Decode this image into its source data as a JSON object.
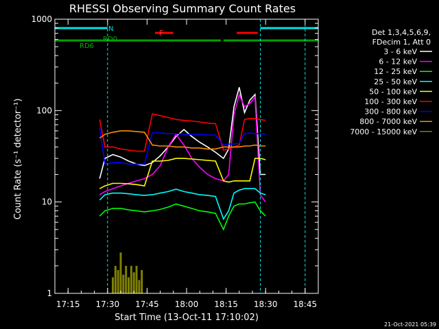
{
  "chart_data": {
    "type": "line",
    "title": "RHESSI Observing Summary Count Rates",
    "xlabel": "Start Time (13-Oct-11 17:10:02)",
    "ylabel": "Count Rate (s⁻¹ detector⁻¹)",
    "y_scale": "log",
    "ylim": [
      1,
      1000
    ],
    "xlim": [
      "17:10",
      "18:50"
    ],
    "x_ticks": [
      "17:15",
      "17:30",
      "17:45",
      "18:00",
      "18:15",
      "18:30",
      "18:45"
    ],
    "y_ticks": [
      "1",
      "10",
      "100",
      "1000"
    ],
    "legend_header": [
      "Det 1,3,4,5,6,9,",
      "FDecim 1, Att 0"
    ],
    "legend_placement": "right",
    "timestamp": "21-Oct-2021 05:39",
    "flag_labels": {
      "night": "N",
      "flare": "F",
      "rd0": "RD0",
      "rd6": "RD6"
    },
    "flags": {
      "night": {
        "color": "#00e5e5",
        "intervals": [
          [
            "17:10",
            "17:30"
          ],
          [
            "18:28",
            "18:50"
          ]
        ]
      },
      "flare": {
        "color": "#ff0000",
        "intervals": [
          [
            "17:48",
            "17:55"
          ],
          [
            "18:19",
            "18:27"
          ]
        ]
      },
      "rd0": {
        "color": "#00a000",
        "intervals": [
          [
            "17:10",
            "17:28"
          ],
          [
            "17:28",
            "17:47"
          ],
          [
            "17:47",
            "18:13"
          ],
          [
            "18:14",
            "18:24"
          ],
          [
            "18:24",
            "18:50"
          ]
        ]
      }
    },
    "vlines": {
      "color": "#00e5e5",
      "times": [
        "17:10",
        "17:30",
        "18:28",
        "18:45"
      ]
    },
    "series": [
      {
        "name": "3 - 6 keV",
        "color": "#ffffff",
        "x": [
          "17:27",
          "17:29",
          "17:32",
          "17:35",
          "17:38",
          "17:41",
          "17:44",
          "17:47",
          "17:50",
          "17:53",
          "17:56",
          "17:59",
          "18:02",
          "18:05",
          "18:08",
          "18:11",
          "18:14",
          "18:16",
          "18:18",
          "18:20",
          "18:22",
          "18:24",
          "18:26",
          "18:28",
          "18:30"
        ],
        "y": [
          18,
          30,
          33,
          31,
          28,
          26,
          25,
          27,
          32,
          40,
          52,
          62,
          52,
          45,
          40,
          35,
          30,
          38,
          110,
          180,
          95,
          130,
          150,
          20,
          20
        ]
      },
      {
        "name": "6 - 12 keV",
        "color": "#ff00ff",
        "x": [
          "17:27",
          "17:29",
          "17:32",
          "17:35",
          "17:38",
          "17:41",
          "17:44",
          "17:47",
          "17:50",
          "17:53",
          "17:56",
          "17:59",
          "18:02",
          "18:05",
          "18:08",
          "18:11",
          "18:14",
          "18:16",
          "18:18",
          "18:20",
          "18:22",
          "18:24",
          "18:26",
          "18:28",
          "18:30"
        ],
        "y": [
          12,
          13,
          14,
          15,
          16,
          17,
          18,
          20,
          25,
          40,
          55,
          42,
          30,
          24,
          20,
          18,
          17,
          20,
          90,
          150,
          110,
          120,
          140,
          12,
          10
        ]
      },
      {
        "name": "12 - 25 keV",
        "color": "#00ff00",
        "x": [
          "17:27",
          "17:29",
          "17:32",
          "17:35",
          "17:38",
          "17:41",
          "17:44",
          "17:47",
          "17:50",
          "17:53",
          "17:56",
          "17:59",
          "18:02",
          "18:05",
          "18:08",
          "18:11",
          "18:14",
          "18:16",
          "18:18",
          "18:20",
          "18:22",
          "18:24",
          "18:26",
          "18:28",
          "18:30"
        ],
        "y": [
          7,
          8,
          8.5,
          8.5,
          8.2,
          8,
          7.8,
          8,
          8.3,
          8.8,
          9.5,
          9,
          8.5,
          8,
          7.8,
          7.5,
          5,
          7,
          9,
          9.5,
          9.5,
          9.8,
          10,
          8,
          7
        ]
      },
      {
        "name": "25 - 50 keV",
        "color": "#00ffff",
        "x": [
          "17:27",
          "17:29",
          "17:32",
          "17:35",
          "17:38",
          "17:41",
          "17:44",
          "17:47",
          "17:50",
          "17:53",
          "17:56",
          "17:59",
          "18:02",
          "18:05",
          "18:08",
          "18:11",
          "18:14",
          "18:16",
          "18:18",
          "18:20",
          "18:22",
          "18:24",
          "18:26",
          "18:28",
          "18:30"
        ],
        "y": [
          10.5,
          12,
          12.5,
          12.5,
          12.3,
          12,
          11.8,
          12,
          12.5,
          13,
          13.8,
          13,
          12.5,
          12,
          11.8,
          11.5,
          6.5,
          8,
          12.5,
          13.5,
          14,
          14,
          14,
          12.5,
          12
        ]
      },
      {
        "name": "50 - 100 keV",
        "color": "#ffff00",
        "x": [
          "17:27",
          "17:29",
          "17:32",
          "17:35",
          "17:38",
          "17:41",
          "17:44",
          "17:47",
          "17:50",
          "17:53",
          "17:56",
          "17:59",
          "18:02",
          "18:05",
          "18:08",
          "18:11",
          "18:14",
          "18:16",
          "18:18",
          "18:20",
          "18:22",
          "18:24",
          "18:26",
          "18:28",
          "18:30"
        ],
        "y": [
          14,
          15,
          16,
          16,
          15.8,
          15.5,
          15,
          28,
          28,
          28.5,
          30,
          30,
          29.5,
          29,
          28.5,
          28,
          17,
          16.5,
          17,
          17,
          17,
          17,
          30,
          30,
          29
        ]
      },
      {
        "name": "100 - 300 keV",
        "color": "#ff0000",
        "x": [
          "17:27",
          "17:29",
          "17:32",
          "17:35",
          "17:38",
          "17:41",
          "17:44",
          "17:47",
          "17:50",
          "17:53",
          "17:56",
          "17:59",
          "18:02",
          "18:05",
          "18:08",
          "18:11",
          "18:14",
          "18:16",
          "18:18",
          "18:20",
          "18:22",
          "18:24",
          "18:26",
          "18:28",
          "18:30"
        ],
        "y": [
          80,
          40,
          40,
          38,
          37,
          36,
          36,
          92,
          88,
          84,
          80,
          78,
          77,
          75,
          73,
          72,
          37,
          38,
          40,
          42,
          80,
          82,
          82,
          80,
          78
        ]
      },
      {
        "name": "300 - 800 keV",
        "color": "#0000ff",
        "x": [
          "17:27",
          "17:29",
          "17:32",
          "17:35",
          "17:38",
          "17:41",
          "17:44",
          "17:47",
          "17:50",
          "17:53",
          "17:56",
          "17:59",
          "18:02",
          "18:05",
          "18:08",
          "18:11",
          "18:14",
          "18:16",
          "18:18",
          "18:20",
          "18:22",
          "18:24",
          "18:26",
          "18:28",
          "18:30"
        ],
        "y": [
          65,
          26,
          27,
          27,
          26,
          26,
          26,
          57,
          57,
          56,
          56,
          55,
          55,
          55,
          54,
          54,
          42,
          43,
          43,
          44,
          56,
          57,
          56,
          56,
          55
        ]
      },
      {
        "name": "800 - 7000 keV",
        "color": "#ff8c00",
        "x": [
          "17:27",
          "17:29",
          "17:32",
          "17:35",
          "17:38",
          "17:41",
          "17:44",
          "17:47",
          "17:50",
          "17:53",
          "17:56",
          "17:59",
          "18:02",
          "18:05",
          "18:08",
          "18:11",
          "18:14",
          "18:16",
          "18:18",
          "18:20",
          "18:22",
          "18:24",
          "18:26",
          "18:28",
          "18:30"
        ],
        "y": [
          50,
          55,
          58,
          60,
          60,
          59,
          58,
          42,
          41,
          41,
          40,
          40,
          39,
          39,
          38,
          38,
          40,
          40,
          40,
          40,
          41,
          41,
          42,
          41,
          41
        ]
      },
      {
        "name": "7000 - 15000 keV",
        "color": "#808000",
        "x": [
          "17:32",
          "17:33",
          "17:34",
          "17:35",
          "17:36",
          "17:37",
          "17:38",
          "17:39",
          "17:40",
          "17:41",
          "17:42",
          "17:43"
        ],
        "y": [
          1.5,
          2,
          1.8,
          2.8,
          1.6,
          2,
          1.5,
          2,
          1.7,
          2,
          1.4,
          1.8
        ]
      }
    ]
  }
}
